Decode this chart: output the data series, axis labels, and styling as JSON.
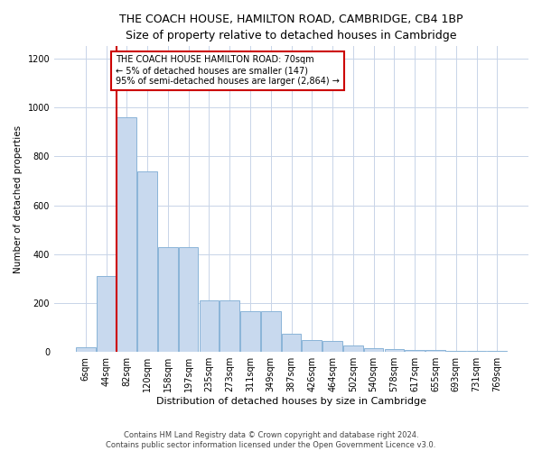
{
  "title": "THE COACH HOUSE, HAMILTON ROAD, CAMBRIDGE, CB4 1BP",
  "subtitle": "Size of property relative to detached houses in Cambridge",
  "xlabel": "Distribution of detached houses by size in Cambridge",
  "ylabel": "Number of detached properties",
  "bar_color": "#c8d9ee",
  "bar_edge_color": "#8ab4d8",
  "grid_color": "#c8d4e8",
  "vline_color": "#cc0000",
  "annotation_box_text": "THE COACH HOUSE HAMILTON ROAD: 70sqm\n← 5% of detached houses are smaller (147)\n95% of semi-detached houses are larger (2,864) →",
  "annotation_box_color": "#cc0000",
  "footnote1": "Contains HM Land Registry data © Crown copyright and database right 2024.",
  "footnote2": "Contains public sector information licensed under the Open Government Licence v3.0.",
  "categories": [
    "6sqm",
    "44sqm",
    "82sqm",
    "120sqm",
    "158sqm",
    "197sqm",
    "235sqm",
    "273sqm",
    "311sqm",
    "349sqm",
    "387sqm",
    "426sqm",
    "464sqm",
    "502sqm",
    "540sqm",
    "578sqm",
    "617sqm",
    "655sqm",
    "693sqm",
    "731sqm",
    "769sqm"
  ],
  "values": [
    20,
    310,
    960,
    740,
    430,
    430,
    210,
    210,
    165,
    165,
    75,
    50,
    45,
    28,
    15,
    10,
    8,
    8,
    5,
    5,
    5
  ],
  "ylim": [
    0,
    1250
  ],
  "yticks": [
    0,
    200,
    400,
    600,
    800,
    1000,
    1200
  ],
  "vline_pos": 1.5,
  "title_fontsize": 9,
  "subtitle_fontsize": 8.5,
  "xlabel_fontsize": 8,
  "ylabel_fontsize": 7.5,
  "tick_fontsize": 7,
  "annot_fontsize": 7,
  "footnote_fontsize": 6
}
